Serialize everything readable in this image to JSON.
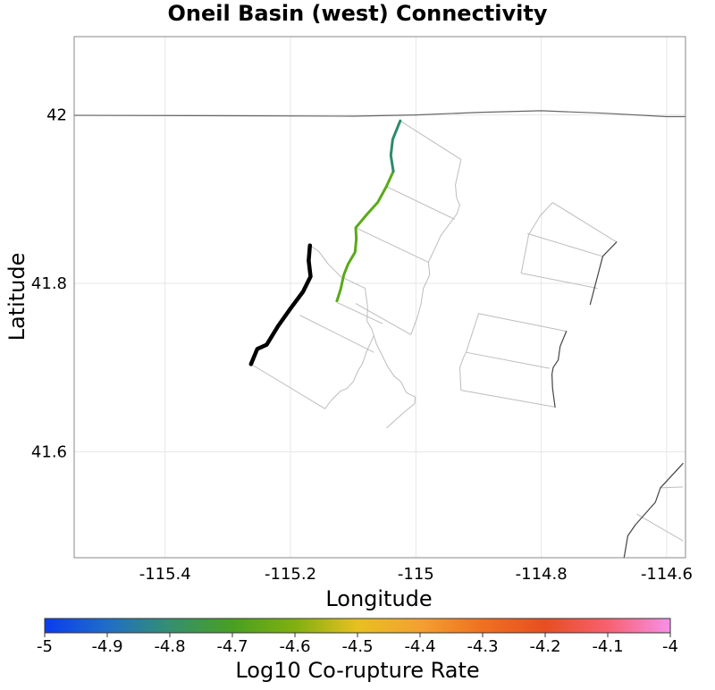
{
  "chart_data": {
    "type": "map",
    "title": "Oneil Basin (west) Connectivity",
    "xlabel": "Longitude",
    "ylabel": "Latitude",
    "xlim": [
      -115.545,
      -114.57
    ],
    "ylim": [
      41.474,
      42.093
    ],
    "x_ticks": [
      -115.4,
      -115.2,
      -115.0,
      -114.8,
      -114.6
    ],
    "x_tick_labels": [
      "-115.4",
      "-115.2",
      "-115",
      "-114.8",
      "-114.6"
    ],
    "y_ticks": [
      41.6,
      41.8,
      42.0
    ],
    "y_tick_labels": [
      "41.6",
      "41.8",
      "42"
    ],
    "grid": true,
    "colorbar": {
      "label": "Log10 Co-rupture Rate",
      "min": -5,
      "max": -4,
      "tick_values": [
        -5,
        -4.9,
        -4.8,
        -4.7,
        -4.6,
        -4.5,
        -4.4,
        -4.3,
        -4.2,
        -4.1,
        -4
      ],
      "tick_labels": [
        "-5",
        "-4.9",
        "-4.8",
        "-4.7",
        "-4.6",
        "-4.5",
        "-4.4",
        "-4.3",
        "-4.2",
        "-4.1",
        "-4"
      ],
      "colors": [
        "#0a3cf0",
        "#1e6ec8",
        "#349070",
        "#48a020",
        "#80b010",
        "#e8c020",
        "#f4a030",
        "#f07020",
        "#e84e20",
        "#f86070",
        "#f890e8"
      ]
    },
    "series": [
      {
        "name": "state-border",
        "role": "boundary",
        "color": "#666666",
        "width": 1.2,
        "points": [
          [
            -115.545,
            41.9995
          ],
          [
            -115.3,
            41.999
          ],
          [
            -115.1,
            41.9985
          ],
          [
            -115.0,
            42.0
          ],
          [
            -114.9,
            42.003
          ],
          [
            -114.8,
            42.005
          ],
          [
            -114.7,
            42.002
          ],
          [
            -114.6,
            41.998
          ],
          [
            -114.57,
            41.998
          ]
        ]
      },
      {
        "name": "oneil-basin-west",
        "role": "source-fault",
        "color": "#000000",
        "width": 4.5,
        "points": [
          [
            -115.169,
            41.845
          ],
          [
            -115.171,
            41.827
          ],
          [
            -115.168,
            41.808
          ],
          [
            -115.18,
            41.79
          ],
          [
            -115.2,
            41.77
          ],
          [
            -115.22,
            41.749
          ],
          [
            -115.238,
            41.727
          ],
          [
            -115.253,
            41.722
          ],
          [
            -115.263,
            41.704
          ]
        ]
      },
      {
        "name": "connected-fault-lower",
        "role": "co-rupture",
        "log10_rate": -4.72,
        "color": "#5aaa18",
        "width": 3,
        "points": [
          [
            -115.126,
            41.779
          ],
          [
            -115.12,
            41.793
          ],
          [
            -115.115,
            41.81
          ],
          [
            -115.108,
            41.823
          ],
          [
            -115.097,
            41.837
          ],
          [
            -115.095,
            41.853
          ],
          [
            -115.096,
            41.866
          ],
          [
            -115.078,
            41.882
          ],
          [
            -115.061,
            41.896
          ],
          [
            -115.047,
            41.915
          ],
          [
            -115.036,
            41.933
          ]
        ]
      },
      {
        "name": "connected-fault-upper",
        "role": "co-rupture",
        "log10_rate": -4.86,
        "color": "#2d8a6e",
        "width": 3,
        "points": [
          [
            -115.036,
            41.933
          ],
          [
            -115.04,
            41.952
          ],
          [
            -115.037,
            41.971
          ],
          [
            -115.025,
            41.993
          ]
        ]
      },
      {
        "name": "ne-fault-trace-a",
        "role": "fault-trace",
        "color": "#444444",
        "width": 1.2,
        "points": [
          [
            -114.68,
            41.849
          ],
          [
            -114.702,
            41.832
          ],
          [
            -114.722,
            41.775
          ]
        ]
      },
      {
        "name": "fault-trace-b",
        "role": "fault-trace",
        "color": "#444444",
        "width": 1.2,
        "points": [
          [
            -114.76,
            41.743
          ],
          [
            -114.77,
            41.725
          ],
          [
            -114.773,
            41.709
          ],
          [
            -114.781,
            41.7
          ],
          [
            -114.783,
            41.692
          ],
          [
            -114.782,
            41.675
          ],
          [
            -114.778,
            41.653
          ]
        ]
      },
      {
        "name": "se-fault-trace",
        "role": "fault-trace",
        "color": "#444444",
        "width": 1.2,
        "points": [
          [
            -114.574,
            41.586
          ],
          [
            -114.61,
            41.557
          ],
          [
            -114.618,
            41.54
          ],
          [
            -114.65,
            41.513
          ],
          [
            -114.662,
            41.5
          ],
          [
            -114.668,
            41.474
          ]
        ]
      }
    ],
    "outlines": [
      {
        "name": "strip-1",
        "points": [
          [
            -115.025,
            41.993
          ],
          [
            -114.928,
            41.947
          ],
          [
            -114.937,
            41.917
          ],
          [
            -114.935,
            41.901
          ],
          [
            -114.93,
            41.893
          ],
          [
            -114.935,
            41.882
          ],
          [
            -114.96,
            41.857
          ],
          [
            -114.98,
            41.825
          ],
          [
            -114.978,
            41.81
          ],
          [
            -114.988,
            41.794
          ],
          [
            -114.992,
            41.775
          ],
          [
            -114.998,
            41.759
          ],
          [
            -115.008,
            41.739
          ]
        ]
      },
      {
        "name": "strip-2",
        "points": [
          [
            -115.008,
            41.739
          ],
          [
            -115.096,
            41.776
          ]
        ]
      },
      {
        "name": "strip-3",
        "points": [
          [
            -115.096,
            41.866
          ],
          [
            -114.98,
            41.825
          ]
        ]
      },
      {
        "name": "strip-4",
        "points": [
          [
            -115.047,
            41.915
          ],
          [
            -114.938,
            41.876
          ]
        ]
      },
      {
        "name": "strip-5",
        "points": [
          [
            -115.169,
            41.845
          ],
          [
            -115.155,
            41.838
          ],
          [
            -115.14,
            41.823
          ],
          [
            -115.12,
            41.808
          ],
          [
            -115.081,
            41.794
          ],
          [
            -115.077,
            41.772
          ],
          [
            -115.078,
            41.755
          ],
          [
            -115.07,
            41.745
          ],
          [
            -115.063,
            41.728
          ],
          [
            -115.053,
            41.713
          ],
          [
            -115.045,
            41.701
          ],
          [
            -115.035,
            41.69
          ],
          [
            -115.024,
            41.683
          ],
          [
            -115.015,
            41.67
          ],
          [
            -115.001,
            41.665
          ]
        ]
      },
      {
        "name": "strip-6",
        "points": [
          [
            -115.001,
            41.665
          ],
          [
            -115.002,
            41.657
          ],
          [
            -115.02,
            41.646
          ],
          [
            -115.047,
            41.628
          ]
        ]
      },
      {
        "name": "strip-7",
        "points": [
          [
            -115.125,
            41.777
          ],
          [
            -115.053,
            41.752
          ]
        ]
      },
      {
        "name": "strip-8",
        "points": [
          [
            -115.185,
            41.762
          ],
          [
            -115.067,
            41.718
          ]
        ]
      },
      {
        "name": "strip-9",
        "points": [
          [
            -115.263,
            41.704
          ],
          [
            -115.145,
            41.651
          ],
          [
            -115.135,
            41.661
          ],
          [
            -115.12,
            41.672
          ],
          [
            -115.11,
            41.675
          ],
          [
            -115.1,
            41.683
          ],
          [
            -115.093,
            41.695
          ],
          [
            -115.085,
            41.705
          ],
          [
            -115.078,
            41.72
          ],
          [
            -115.067,
            41.738
          ]
        ]
      },
      {
        "name": "ne-block-1",
        "points": [
          [
            -114.68,
            41.849
          ],
          [
            -114.782,
            41.896
          ],
          [
            -114.802,
            41.88
          ],
          [
            -114.815,
            41.864
          ],
          [
            -114.82,
            41.858
          ],
          [
            -114.832,
            41.812
          ],
          [
            -114.71,
            41.794
          ]
        ]
      },
      {
        "name": "ne-block-2",
        "points": [
          [
            -114.822,
            41.859
          ],
          [
            -114.702,
            41.832
          ]
        ]
      },
      {
        "name": "mid-block-1",
        "points": [
          [
            -114.76,
            41.743
          ],
          [
            -114.9,
            41.764
          ],
          [
            -114.92,
            41.718
          ],
          [
            -114.924,
            41.712
          ],
          [
            -114.93,
            41.7
          ],
          [
            -114.928,
            41.673
          ],
          [
            -114.778,
            41.653
          ]
        ]
      },
      {
        "name": "mid-block-2",
        "points": [
          [
            -114.92,
            41.718
          ],
          [
            -114.787,
            41.699
          ]
        ]
      },
      {
        "name": "se-block-1",
        "points": [
          [
            -114.574,
            41.558
          ],
          [
            -114.61,
            41.557
          ]
        ]
      },
      {
        "name": "se-block-2",
        "points": [
          [
            -114.648,
            41.526
          ],
          [
            -114.574,
            41.494
          ]
        ]
      }
    ]
  }
}
